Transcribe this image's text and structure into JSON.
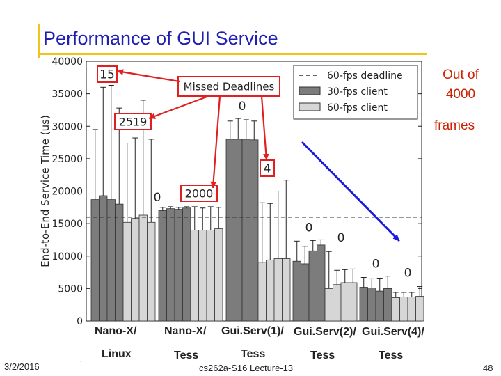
{
  "slide": {
    "title": "Performance of GUI Service",
    "note_line1": "Out of",
    "note_line2": "4000",
    "note_line3": "frames",
    "footer_date": "3/2/2016",
    "footer_lecture": "cs262a-S16 Lecture-13",
    "footer_page": "48",
    "footer_tick": "`",
    "categories_top": [
      "Nano-X/",
      "Nano-X/",
      "Gui.Serv(1)/",
      "Gui.Serv(2)/",
      "Gui.Serv(4)/"
    ],
    "categories_bottom": [
      "Linux",
      "Tess",
      "Tess",
      "Tess",
      "Tess"
    ]
  },
  "chart_data": {
    "type": "bar",
    "ylabel": "End-to-End Service Time (us)",
    "ylim": [
      0,
      40000
    ],
    "yticks": [
      0,
      5000,
      10000,
      15000,
      20000,
      25000,
      30000,
      35000,
      40000
    ],
    "deadline": 16000,
    "groups": [
      {
        "name": "Nano-X/ Linux",
        "dark": [
          {
            "v": 18700,
            "e": 29500
          },
          {
            "v": 19300,
            "e": 36000
          },
          {
            "v": 18700,
            "e": 36300
          },
          {
            "v": 18000,
            "e": 32800
          }
        ],
        "light": [
          {
            "v": 15200,
            "e": 27400
          },
          {
            "v": 15800,
            "e": 28200
          },
          {
            "v": 16300,
            "e": 34000
          },
          {
            "v": 15200,
            "e": 28000
          }
        ],
        "missed_dark": "",
        "missed_light": ""
      },
      {
        "name": "Nano-X/ Tess",
        "dark": [
          {
            "v": 17000,
            "e": 17500
          },
          {
            "v": 17300,
            "e": 17600
          },
          {
            "v": 17200,
            "e": 17500
          },
          {
            "v": 17400,
            "e": 17600
          }
        ],
        "light": [
          {
            "v": 14000,
            "e": 17600
          },
          {
            "v": 14000,
            "e": 17400
          },
          {
            "v": 14000,
            "e": 17600
          },
          {
            "v": 14200,
            "e": 17500
          }
        ],
        "missed_dark": "0",
        "missed_light": ""
      },
      {
        "name": "Gui.Serv(1)/ Tess",
        "dark": [
          {
            "v": 28000,
            "e": 30800
          },
          {
            "v": 28000,
            "e": 31200
          },
          {
            "v": 28000,
            "e": 31000
          },
          {
            "v": 27900,
            "e": 30800
          }
        ],
        "light": [
          {
            "v": 9000,
            "e": 18200
          },
          {
            "v": 9400,
            "e": 18100
          },
          {
            "v": 9600,
            "e": 20000
          },
          {
            "v": 9600,
            "e": 21700
          }
        ],
        "missed_dark": "0",
        "missed_light": ""
      },
      {
        "name": "Gui.Serv(2)/ Tess",
        "dark": [
          {
            "v": 9200,
            "e": 12300
          },
          {
            "v": 8800,
            "e": 11500
          },
          {
            "v": 10800,
            "e": 12400
          },
          {
            "v": 11700,
            "e": 12500
          }
        ],
        "light": [
          {
            "v": 5000,
            "e": 10700
          },
          {
            "v": 5600,
            "e": 7800
          },
          {
            "v": 5900,
            "e": 7900
          },
          {
            "v": 5900,
            "e": 8000
          }
        ],
        "missed_dark": "0",
        "missed_light": "0"
      },
      {
        "name": "Gui.Serv(4)/ Tess",
        "dark": [
          {
            "v": 5200,
            "e": 6700
          },
          {
            "v": 5100,
            "e": 6500
          },
          {
            "v": 4600,
            "e": 6600
          },
          {
            "v": 5000,
            "e": 6900
          }
        ],
        "light": [
          {
            "v": 3600,
            "e": 4400
          },
          {
            "v": 3700,
            "e": 4400
          },
          {
            "v": 3700,
            "e": 4400
          },
          {
            "v": 3800,
            "e": 5300
          }
        ],
        "missed_dark": "0",
        "missed_light": "0"
      }
    ],
    "legend": {
      "deadline": "60-fps deadline",
      "dark": "30-fps client",
      "light": "60-fps client"
    },
    "callouts": {
      "main": "Missed Deadlines",
      "a": "15",
      "b": "2519",
      "c": "2000",
      "d": "4"
    },
    "colors": {
      "dark": "#7c7c7c",
      "light": "#d6d6d6",
      "red": "#e02020",
      "blue": "#1a1adf"
    }
  }
}
